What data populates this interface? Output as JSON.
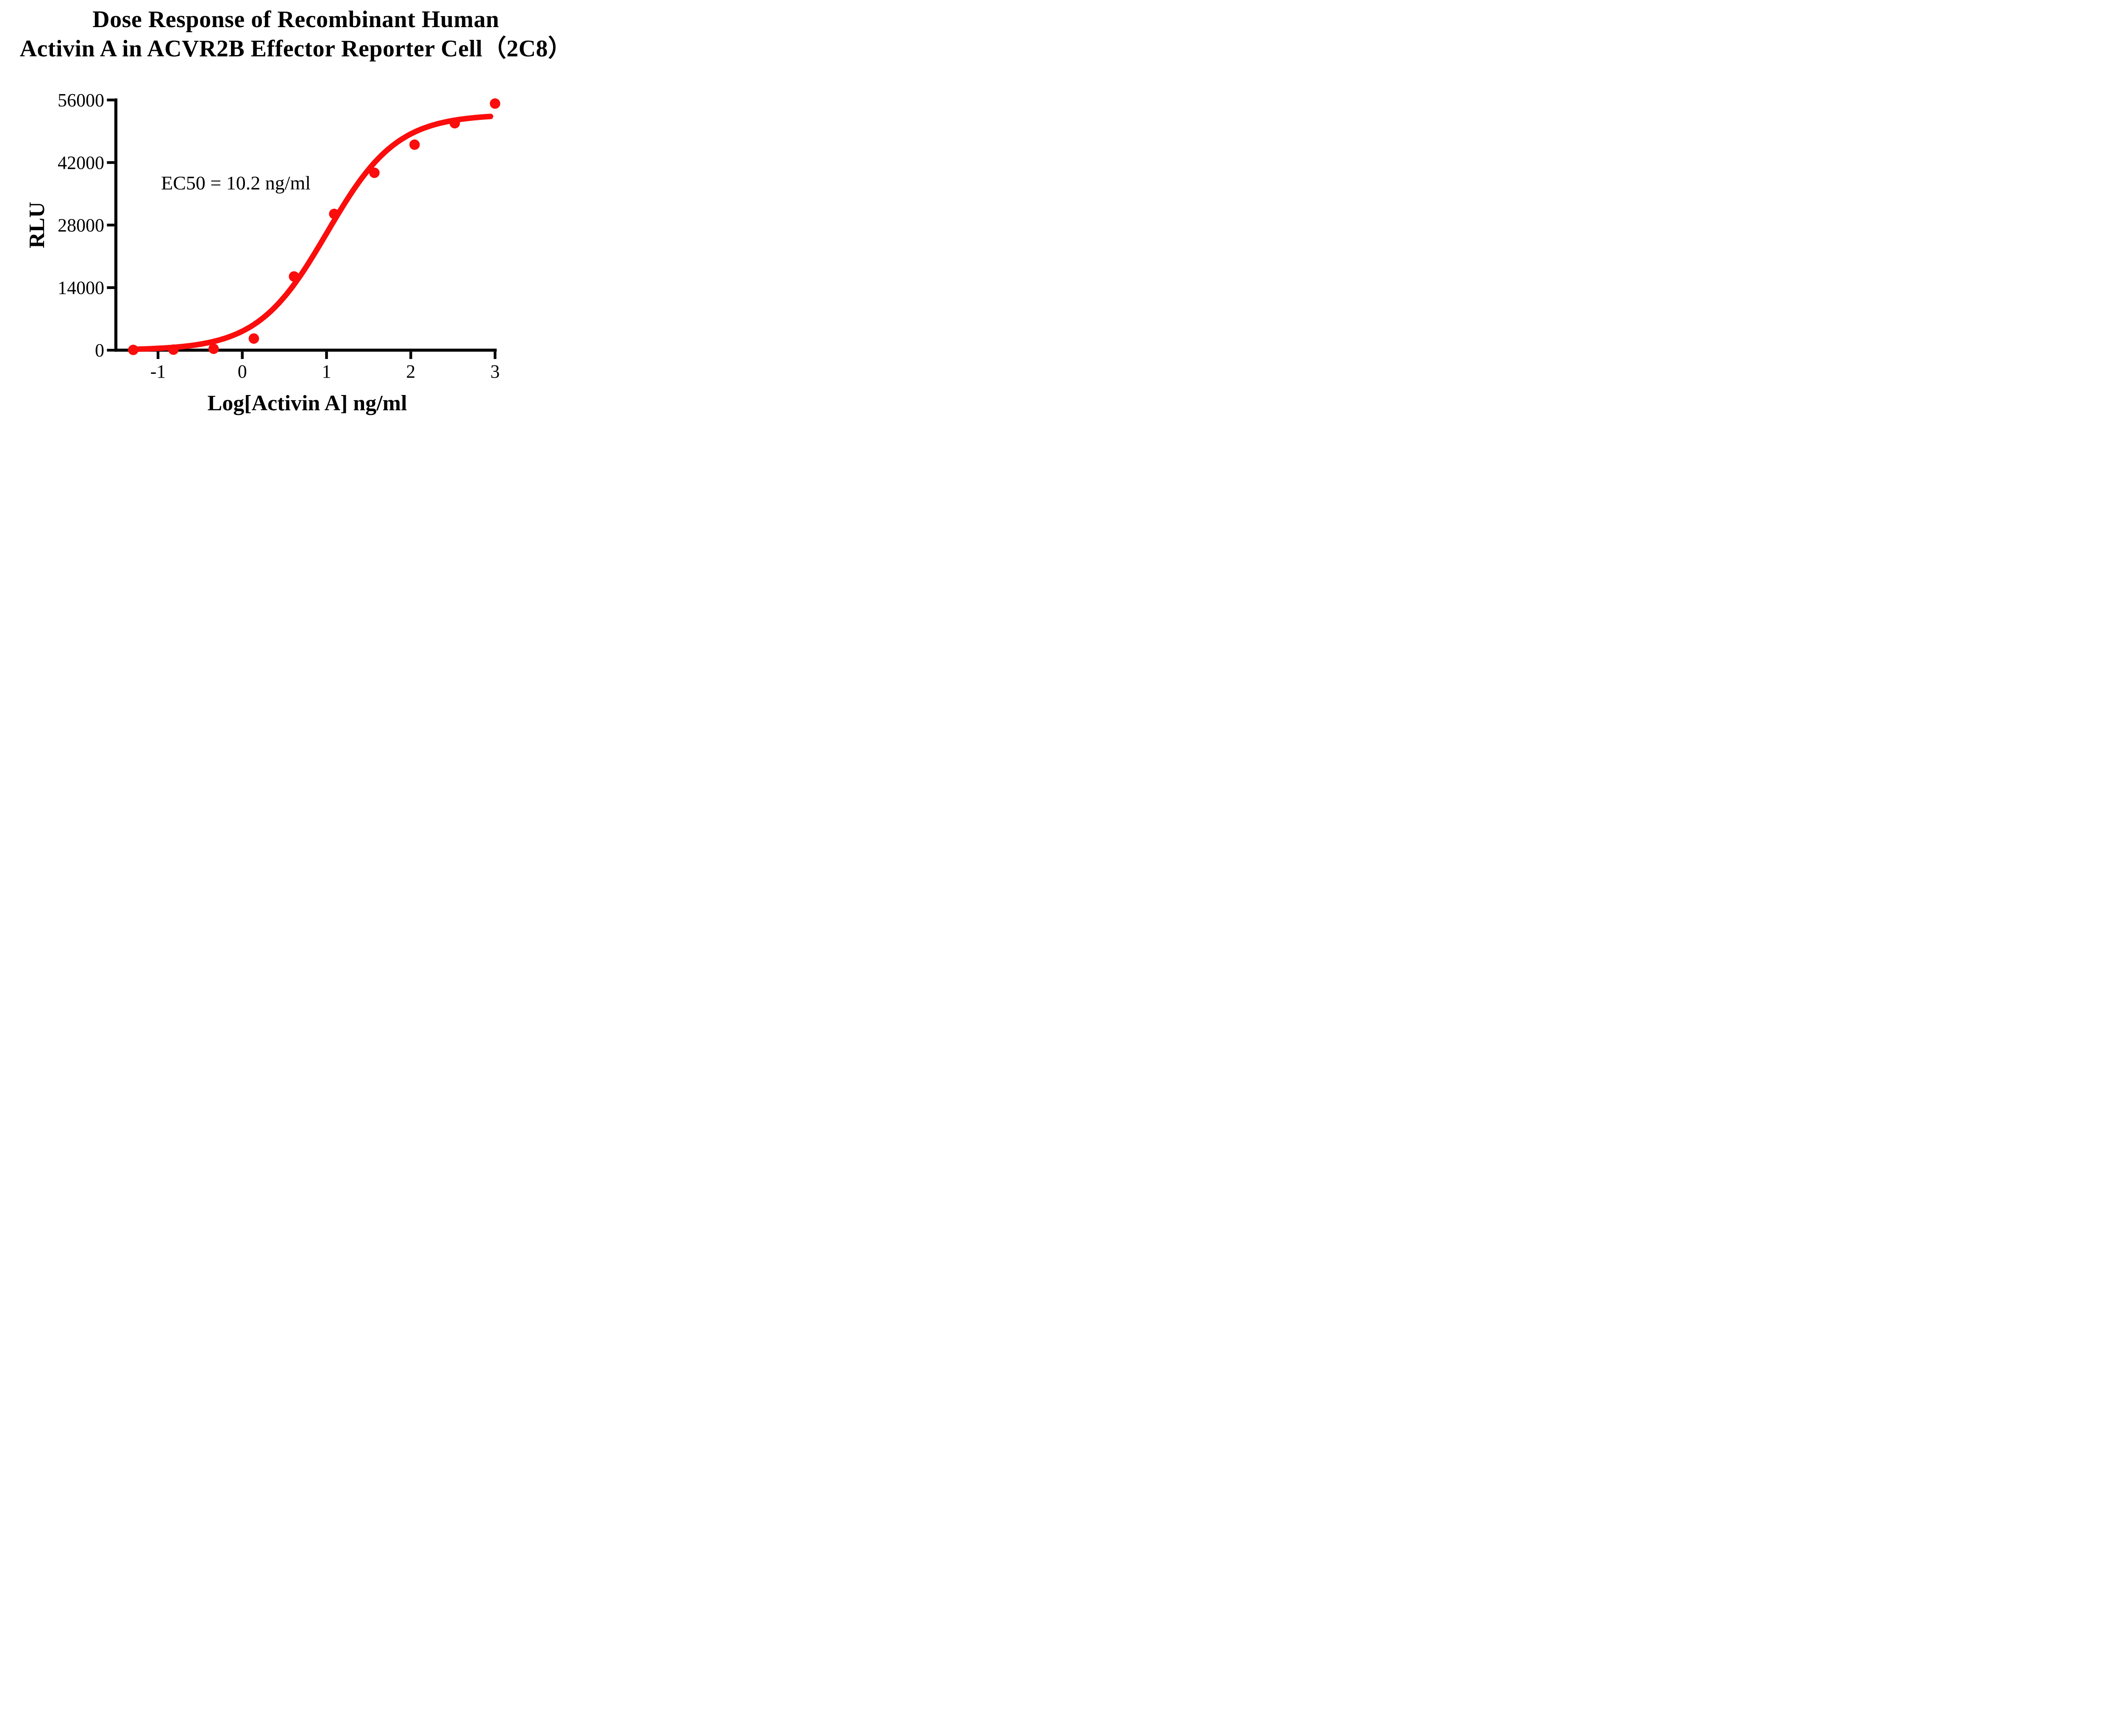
{
  "title": {
    "line1": "Dose Response of Recombinant Human",
    "line2": "Activin A in ACVR2B Effector Reporter Cell（2C8）"
  },
  "annotation": {
    "ec50_text": "EC50 = 10.2 ng/ml"
  },
  "axes": {
    "x": {
      "label": "Log[Activin A] ng/ml",
      "ticks": [
        -1,
        0,
        1,
        2,
        3
      ],
      "tick_labels": [
        "-1",
        "0",
        "1",
        "2",
        "3"
      ],
      "range": [
        -1.5,
        3.02
      ]
    },
    "y": {
      "label": "RLU",
      "ticks": [
        0,
        14000,
        28000,
        42000,
        56000
      ],
      "tick_labels": [
        "0",
        "14000",
        "28000",
        "42000",
        "56000"
      ],
      "range": [
        0,
        56000
      ]
    }
  },
  "colors": {
    "series_red": "#FA0D0C",
    "axis_black": "#000000",
    "background": "#FFFFFF"
  },
  "chart_data": {
    "type": "scatter",
    "title": "Dose Response of Recombinant Human Activin A in ACVR2B Effector Reporter Cell（2C8）",
    "xlabel": "Log[Activin A] ng/ml",
    "ylabel": "RLU",
    "xlim": [
      -1.5,
      3.02
    ],
    "ylim": [
      0,
      56000
    ],
    "grid": false,
    "legend": false,
    "ec50_ng_ml": 10.2,
    "points": [
      [
        -1.294,
        60
      ],
      [
        -0.817,
        120
      ],
      [
        -0.34,
        310
      ],
      [
        0.137,
        2600
      ],
      [
        0.614,
        16500
      ],
      [
        1.091,
        30500
      ],
      [
        1.568,
        39700
      ],
      [
        2.045,
        46000
      ],
      [
        2.522,
        50800
      ],
      [
        3.0,
        55200
      ]
    ],
    "fit_curve": {
      "model": "4PL",
      "bottom": 0,
      "top": 52800,
      "log_ec50": 1.0086,
      "hill_slope": 1.05,
      "x_start": -1.294,
      "x_end": 2.955
    }
  }
}
